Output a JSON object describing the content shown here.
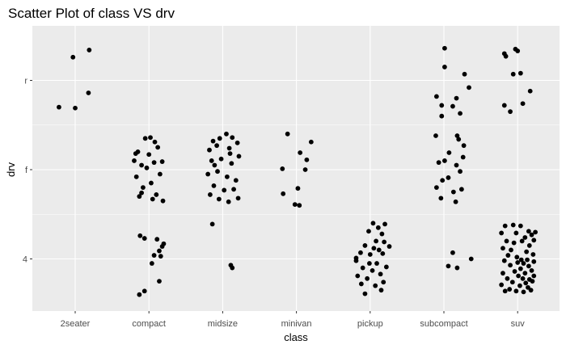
{
  "chart_data": {
    "type": "scatter",
    "title": "Scatter Plot of class VS drv",
    "xlabel": "class",
    "ylabel": "drv",
    "x_categories": [
      "2seater",
      "compact",
      "midsize",
      "minivan",
      "pickup",
      "subcompact",
      "suv"
    ],
    "y_categories": [
      "4",
      "f",
      "r"
    ],
    "jitter": true,
    "grid": true,
    "background": "#ebebeb",
    "grid_color": "#ffffff",
    "point_color": "#000000",
    "points": [
      {
        "x": "2seater",
        "y": "r",
        "dx": -0.22,
        "dy": -0.3
      },
      {
        "x": "2seater",
        "y": "r",
        "dx": -0.03,
        "dy": 0.26
      },
      {
        "x": "2seater",
        "y": "r",
        "dx": 0.0,
        "dy": -0.31
      },
      {
        "x": "2seater",
        "y": "r",
        "dx": 0.19,
        "dy": 0.34
      },
      {
        "x": "2seater",
        "y": "r",
        "dx": 0.18,
        "dy": -0.14
      },
      {
        "x": "compact",
        "y": "f",
        "dx": -0.15,
        "dy": 0.2
      },
      {
        "x": "compact",
        "y": "f",
        "dx": -0.05,
        "dy": 0.35
      },
      {
        "x": "compact",
        "y": "f",
        "dx": 0.02,
        "dy": 0.36
      },
      {
        "x": "compact",
        "y": "f",
        "dx": 0.08,
        "dy": 0.31
      },
      {
        "x": "compact",
        "y": "f",
        "dx": -0.2,
        "dy": 0.1
      },
      {
        "x": "compact",
        "y": "f",
        "dx": -0.1,
        "dy": 0.05
      },
      {
        "x": "compact",
        "y": "f",
        "dx": 0.0,
        "dy": 0.17
      },
      {
        "x": "compact",
        "y": "f",
        "dx": 0.12,
        "dy": 0.25
      },
      {
        "x": "compact",
        "y": "f",
        "dx": 0.18,
        "dy": 0.09
      },
      {
        "x": "compact",
        "y": "f",
        "dx": -0.17,
        "dy": -0.08
      },
      {
        "x": "compact",
        "y": "f",
        "dx": -0.08,
        "dy": -0.2
      },
      {
        "x": "compact",
        "y": "f",
        "dx": 0.03,
        "dy": -0.15
      },
      {
        "x": "compact",
        "y": "f",
        "dx": 0.1,
        "dy": -0.28
      },
      {
        "x": "compact",
        "y": "f",
        "dx": 0.19,
        "dy": -0.35
      },
      {
        "x": "compact",
        "y": "f",
        "dx": -0.13,
        "dy": -0.3
      },
      {
        "x": "compact",
        "y": "f",
        "dx": 0.05,
        "dy": -0.33
      },
      {
        "x": "compact",
        "y": "f",
        "dx": -0.03,
        "dy": 0.02
      },
      {
        "x": "compact",
        "y": "f",
        "dx": 0.15,
        "dy": -0.05
      },
      {
        "x": "compact",
        "y": "f",
        "dx": -0.18,
        "dy": 0.18
      },
      {
        "x": "compact",
        "y": "f",
        "dx": 0.07,
        "dy": 0.08
      },
      {
        "x": "compact",
        "y": "f",
        "dx": -0.1,
        "dy": -0.26
      },
      {
        "x": "compact",
        "y": "4",
        "dx": -0.12,
        "dy": 0.26
      },
      {
        "x": "compact",
        "y": "4",
        "dx": -0.06,
        "dy": 0.23
      },
      {
        "x": "compact",
        "y": "4",
        "dx": 0.11,
        "dy": 0.22
      },
      {
        "x": "compact",
        "y": "4",
        "dx": 0.2,
        "dy": 0.17
      },
      {
        "x": "compact",
        "y": "4",
        "dx": 0.18,
        "dy": 0.14
      },
      {
        "x": "compact",
        "y": "4",
        "dx": 0.14,
        "dy": 0.09
      },
      {
        "x": "compact",
        "y": "4",
        "dx": 0.07,
        "dy": 0.04
      },
      {
        "x": "compact",
        "y": "4",
        "dx": 0.16,
        "dy": 0.03
      },
      {
        "x": "compact",
        "y": "4",
        "dx": 0.04,
        "dy": -0.05
      },
      {
        "x": "compact",
        "y": "4",
        "dx": 0.14,
        "dy": -0.25
      },
      {
        "x": "compact",
        "y": "4",
        "dx": -0.06,
        "dy": -0.36
      },
      {
        "x": "compact",
        "y": "4",
        "dx": -0.13,
        "dy": -0.4
      },
      {
        "x": "midsize",
        "y": "f",
        "dx": -0.13,
        "dy": 0.32
      },
      {
        "x": "midsize",
        "y": "f",
        "dx": -0.04,
        "dy": 0.35
      },
      {
        "x": "midsize",
        "y": "f",
        "dx": 0.05,
        "dy": 0.4
      },
      {
        "x": "midsize",
        "y": "f",
        "dx": 0.13,
        "dy": 0.36
      },
      {
        "x": "midsize",
        "y": "f",
        "dx": 0.2,
        "dy": 0.3
      },
      {
        "x": "midsize",
        "y": "f",
        "dx": -0.18,
        "dy": 0.22
      },
      {
        "x": "midsize",
        "y": "f",
        "dx": -0.08,
        "dy": 0.27
      },
      {
        "x": "midsize",
        "y": "f",
        "dx": 0.09,
        "dy": 0.24
      },
      {
        "x": "midsize",
        "y": "f",
        "dx": 0.22,
        "dy": 0.15
      },
      {
        "x": "midsize",
        "y": "f",
        "dx": -0.15,
        "dy": 0.1
      },
      {
        "x": "midsize",
        "y": "f",
        "dx": -0.02,
        "dy": 0.12
      },
      {
        "x": "midsize",
        "y": "f",
        "dx": 0.12,
        "dy": 0.07
      },
      {
        "x": "midsize",
        "y": "f",
        "dx": -0.2,
        "dy": -0.05
      },
      {
        "x": "midsize",
        "y": "f",
        "dx": -0.07,
        "dy": -0.02
      },
      {
        "x": "midsize",
        "y": "f",
        "dx": 0.06,
        "dy": -0.08
      },
      {
        "x": "midsize",
        "y": "f",
        "dx": 0.18,
        "dy": -0.12
      },
      {
        "x": "midsize",
        "y": "f",
        "dx": -0.12,
        "dy": -0.18
      },
      {
        "x": "midsize",
        "y": "f",
        "dx": 0.02,
        "dy": -0.23
      },
      {
        "x": "midsize",
        "y": "f",
        "dx": 0.15,
        "dy": -0.22
      },
      {
        "x": "midsize",
        "y": "f",
        "dx": -0.17,
        "dy": -0.28
      },
      {
        "x": "midsize",
        "y": "f",
        "dx": -0.05,
        "dy": -0.33
      },
      {
        "x": "midsize",
        "y": "f",
        "dx": 0.08,
        "dy": -0.36
      },
      {
        "x": "midsize",
        "y": "f",
        "dx": 0.21,
        "dy": -0.32
      },
      {
        "x": "midsize",
        "y": "f",
        "dx": -0.11,
        "dy": 0.05
      },
      {
        "x": "midsize",
        "y": "f",
        "dx": 0.1,
        "dy": 0.18
      },
      {
        "x": "midsize",
        "y": "f",
        "dx": -0.14,
        "dy": -0.61
      },
      {
        "x": "midsize",
        "y": "4",
        "dx": 0.11,
        "dy": -0.07
      },
      {
        "x": "midsize",
        "y": "4",
        "dx": 0.13,
        "dy": -0.1
      },
      {
        "x": "minivan",
        "y": "f",
        "dx": -0.12,
        "dy": 0.4
      },
      {
        "x": "minivan",
        "y": "f",
        "dx": 0.2,
        "dy": 0.31
      },
      {
        "x": "minivan",
        "y": "f",
        "dx": 0.05,
        "dy": 0.19
      },
      {
        "x": "minivan",
        "y": "f",
        "dx": 0.14,
        "dy": 0.11
      },
      {
        "x": "minivan",
        "y": "f",
        "dx": 0.12,
        "dy": 0.0
      },
      {
        "x": "minivan",
        "y": "f",
        "dx": -0.19,
        "dy": 0.01
      },
      {
        "x": "minivan",
        "y": "f",
        "dx": 0.02,
        "dy": -0.21
      },
      {
        "x": "minivan",
        "y": "f",
        "dx": -0.18,
        "dy": -0.27
      },
      {
        "x": "minivan",
        "y": "f",
        "dx": -0.02,
        "dy": -0.39
      },
      {
        "x": "minivan",
        "y": "f",
        "dx": 0.04,
        "dy": -0.4
      },
      {
        "x": "pickup",
        "y": "4",
        "dx": 0.04,
        "dy": 0.4
      },
      {
        "x": "pickup",
        "y": "4",
        "dx": 0.2,
        "dy": 0.39
      },
      {
        "x": "pickup",
        "y": "4",
        "dx": 0.11,
        "dy": 0.35
      },
      {
        "x": "pickup",
        "y": "4",
        "dx": -0.02,
        "dy": 0.31
      },
      {
        "x": "pickup",
        "y": "4",
        "dx": 0.16,
        "dy": 0.28
      },
      {
        "x": "pickup",
        "y": "4",
        "dx": 0.08,
        "dy": 0.2
      },
      {
        "x": "pickup",
        "y": "4",
        "dx": 0.19,
        "dy": 0.19
      },
      {
        "x": "pickup",
        "y": "4",
        "dx": -0.07,
        "dy": 0.15
      },
      {
        "x": "pickup",
        "y": "4",
        "dx": 0.05,
        "dy": 0.12
      },
      {
        "x": "pickup",
        "y": "4",
        "dx": 0.26,
        "dy": 0.14
      },
      {
        "x": "pickup",
        "y": "4",
        "dx": -0.13,
        "dy": 0.07
      },
      {
        "x": "pickup",
        "y": "4",
        "dx": 0.0,
        "dy": 0.05
      },
      {
        "x": "pickup",
        "y": "4",
        "dx": 0.17,
        "dy": 0.06
      },
      {
        "x": "pickup",
        "y": "4",
        "dx": -0.19,
        "dy": -0.02
      },
      {
        "x": "pickup",
        "y": "4",
        "dx": 0.09,
        "dy": -0.05
      },
      {
        "x": "pickup",
        "y": "4",
        "dx": 0.22,
        "dy": -0.09
      },
      {
        "x": "pickup",
        "y": "4",
        "dx": -0.1,
        "dy": -0.1
      },
      {
        "x": "pickup",
        "y": "4",
        "dx": 0.03,
        "dy": -0.13
      },
      {
        "x": "pickup",
        "y": "4",
        "dx": 0.14,
        "dy": -0.17
      },
      {
        "x": "pickup",
        "y": "4",
        "dx": -0.17,
        "dy": -0.19
      },
      {
        "x": "pickup",
        "y": "4",
        "dx": -0.04,
        "dy": -0.22
      },
      {
        "x": "pickup",
        "y": "4",
        "dx": 0.18,
        "dy": -0.26
      },
      {
        "x": "pickup",
        "y": "4",
        "dx": -0.12,
        "dy": -0.28
      },
      {
        "x": "pickup",
        "y": "4",
        "dx": 0.07,
        "dy": -0.3
      },
      {
        "x": "pickup",
        "y": "4",
        "dx": 0.15,
        "dy": -0.35
      },
      {
        "x": "pickup",
        "y": "4",
        "dx": -0.07,
        "dy": -0.39
      },
      {
        "x": "pickup",
        "y": "4",
        "dx": -0.19,
        "dy": 0.01
      },
      {
        "x": "pickup",
        "y": "4",
        "dx": 0.12,
        "dy": 0.1
      },
      {
        "x": "pickup",
        "y": "4",
        "dx": -0.01,
        "dy": -0.05
      },
      {
        "x": "subcompact",
        "y": "r",
        "dx": 0.01,
        "dy": 0.36
      },
      {
        "x": "subcompact",
        "y": "r",
        "dx": 0.01,
        "dy": 0.15
      },
      {
        "x": "subcompact",
        "y": "r",
        "dx": 0.28,
        "dy": 0.07
      },
      {
        "x": "subcompact",
        "y": "r",
        "dx": 0.34,
        "dy": -0.08
      },
      {
        "x": "subcompact",
        "y": "r",
        "dx": -0.1,
        "dy": -0.18
      },
      {
        "x": "subcompact",
        "y": "r",
        "dx": 0.17,
        "dy": -0.2
      },
      {
        "x": "subcompact",
        "y": "r",
        "dx": -0.03,
        "dy": -0.28
      },
      {
        "x": "subcompact",
        "y": "r",
        "dx": 0.12,
        "dy": -0.29
      },
      {
        "x": "subcompact",
        "y": "r",
        "dx": 0.22,
        "dy": -0.37
      },
      {
        "x": "subcompact",
        "y": "r",
        "dx": -0.03,
        "dy": -0.4
      },
      {
        "x": "subcompact",
        "y": "f",
        "dx": -0.11,
        "dy": 0.38
      },
      {
        "x": "subcompact",
        "y": "f",
        "dx": 0.18,
        "dy": 0.38
      },
      {
        "x": "subcompact",
        "y": "f",
        "dx": 0.2,
        "dy": 0.34
      },
      {
        "x": "subcompact",
        "y": "f",
        "dx": 0.27,
        "dy": 0.27
      },
      {
        "x": "subcompact",
        "y": "f",
        "dx": 0.07,
        "dy": 0.19
      },
      {
        "x": "subcompact",
        "y": "f",
        "dx": 0.26,
        "dy": 0.14
      },
      {
        "x": "subcompact",
        "y": "f",
        "dx": -0.07,
        "dy": 0.08
      },
      {
        "x": "subcompact",
        "y": "f",
        "dx": 0.17,
        "dy": 0.05
      },
      {
        "x": "subcompact",
        "y": "f",
        "dx": 0.22,
        "dy": -0.02
      },
      {
        "x": "subcompact",
        "y": "f",
        "dx": -0.02,
        "dy": -0.12
      },
      {
        "x": "subcompact",
        "y": "f",
        "dx": 0.06,
        "dy": -0.09
      },
      {
        "x": "subcompact",
        "y": "f",
        "dx": 0.24,
        "dy": -0.22
      },
      {
        "x": "subcompact",
        "y": "f",
        "dx": -0.1,
        "dy": -0.2
      },
      {
        "x": "subcompact",
        "y": "f",
        "dx": 0.13,
        "dy": -0.25
      },
      {
        "x": "subcompact",
        "y": "f",
        "dx": -0.04,
        "dy": -0.32
      },
      {
        "x": "subcompact",
        "y": "f",
        "dx": 0.16,
        "dy": -0.36
      },
      {
        "x": "subcompact",
        "y": "f",
        "dx": 0.01,
        "dy": 0.1
      },
      {
        "x": "subcompact",
        "y": "4",
        "dx": 0.12,
        "dy": 0.07
      },
      {
        "x": "subcompact",
        "y": "4",
        "dx": 0.37,
        "dy": 0.0
      },
      {
        "x": "subcompact",
        "y": "4",
        "dx": 0.06,
        "dy": -0.08
      },
      {
        "x": "subcompact",
        "y": "4",
        "dx": 0.18,
        "dy": -0.1
      },
      {
        "x": "suv",
        "y": "r",
        "dx": -0.18,
        "dy": 0.3
      },
      {
        "x": "suv",
        "y": "r",
        "dx": -0.16,
        "dy": 0.27
      },
      {
        "x": "suv",
        "y": "r",
        "dx": -0.03,
        "dy": 0.35
      },
      {
        "x": "suv",
        "y": "r",
        "dx": 0.0,
        "dy": 0.33
      },
      {
        "x": "suv",
        "y": "r",
        "dx": 0.04,
        "dy": 0.08
      },
      {
        "x": "suv",
        "y": "r",
        "dx": -0.06,
        "dy": 0.07
      },
      {
        "x": "suv",
        "y": "r",
        "dx": 0.17,
        "dy": -0.12
      },
      {
        "x": "suv",
        "y": "r",
        "dx": 0.07,
        "dy": -0.26
      },
      {
        "x": "suv",
        "y": "r",
        "dx": -0.18,
        "dy": -0.28
      },
      {
        "x": "suv",
        "y": "r",
        "dx": -0.1,
        "dy": -0.35
      },
      {
        "x": "suv",
        "y": "4",
        "dx": -0.17,
        "dy": 0.37
      },
      {
        "x": "suv",
        "y": "4",
        "dx": -0.06,
        "dy": 0.38
      },
      {
        "x": "suv",
        "y": "4",
        "dx": 0.04,
        "dy": 0.37
      },
      {
        "x": "suv",
        "y": "4",
        "dx": 0.15,
        "dy": 0.31
      },
      {
        "x": "suv",
        "y": "4",
        "dx": 0.24,
        "dy": 0.3
      },
      {
        "x": "suv",
        "y": "4",
        "dx": -0.22,
        "dy": 0.29
      },
      {
        "x": "suv",
        "y": "4",
        "dx": -0.02,
        "dy": 0.29
      },
      {
        "x": "suv",
        "y": "4",
        "dx": 0.19,
        "dy": 0.27
      },
      {
        "x": "suv",
        "y": "4",
        "dx": 0.1,
        "dy": 0.24
      },
      {
        "x": "suv",
        "y": "4",
        "dx": 0.22,
        "dy": 0.21
      },
      {
        "x": "suv",
        "y": "4",
        "dx": -0.15,
        "dy": 0.2
      },
      {
        "x": "suv",
        "y": "4",
        "dx": 0.06,
        "dy": 0.2
      },
      {
        "x": "suv",
        "y": "4",
        "dx": -0.05,
        "dy": 0.18
      },
      {
        "x": "suv",
        "y": "4",
        "dx": 0.16,
        "dy": 0.15
      },
      {
        "x": "suv",
        "y": "4",
        "dx": -0.2,
        "dy": 0.12
      },
      {
        "x": "suv",
        "y": "4",
        "dx": -0.09,
        "dy": 0.1
      },
      {
        "x": "suv",
        "y": "4",
        "dx": 0.12,
        "dy": 0.08
      },
      {
        "x": "suv",
        "y": "4",
        "dx": 0.21,
        "dy": 0.05
      },
      {
        "x": "suv",
        "y": "4",
        "dx": -0.13,
        "dy": 0.04
      },
      {
        "x": "suv",
        "y": "4",
        "dx": -0.01,
        "dy": 0.02
      },
      {
        "x": "suv",
        "y": "4",
        "dx": 0.05,
        "dy": -0.01
      },
      {
        "x": "suv",
        "y": "4",
        "dx": 0.13,
        "dy": -0.01
      },
      {
        "x": "suv",
        "y": "4",
        "dx": -0.18,
        "dy": -0.02
      },
      {
        "x": "suv",
        "y": "4",
        "dx": 0.0,
        "dy": -0.04
      },
      {
        "x": "suv",
        "y": "4",
        "dx": 0.08,
        "dy": -0.05
      },
      {
        "x": "suv",
        "y": "4",
        "dx": 0.22,
        "dy": -0.03
      },
      {
        "x": "suv",
        "y": "4",
        "dx": -0.1,
        "dy": -0.07
      },
      {
        "x": "suv",
        "y": "4",
        "dx": 0.15,
        "dy": -0.08
      },
      {
        "x": "suv",
        "y": "4",
        "dx": 0.04,
        "dy": -0.11
      },
      {
        "x": "suv",
        "y": "4",
        "dx": -0.04,
        "dy": -0.14
      },
      {
        "x": "suv",
        "y": "4",
        "dx": 0.19,
        "dy": -0.13
      },
      {
        "x": "suv",
        "y": "4",
        "dx": 0.1,
        "dy": -0.16
      },
      {
        "x": "suv",
        "y": "4",
        "dx": -0.2,
        "dy": -0.16
      },
      {
        "x": "suv",
        "y": "4",
        "dx": 0.01,
        "dy": -0.19
      },
      {
        "x": "suv",
        "y": "4",
        "dx": 0.22,
        "dy": -0.19
      },
      {
        "x": "suv",
        "y": "4",
        "dx": -0.14,
        "dy": -0.22
      },
      {
        "x": "suv",
        "y": "4",
        "dx": 0.07,
        "dy": -0.22
      },
      {
        "x": "suv",
        "y": "4",
        "dx": 0.16,
        "dy": -0.23
      },
      {
        "x": "suv",
        "y": "4",
        "dx": -0.07,
        "dy": -0.26
      },
      {
        "x": "suv",
        "y": "4",
        "dx": 0.11,
        "dy": -0.27
      },
      {
        "x": "suv",
        "y": "4",
        "dx": 0.2,
        "dy": -0.25
      },
      {
        "x": "suv",
        "y": "4",
        "dx": -0.22,
        "dy": -0.29
      },
      {
        "x": "suv",
        "y": "4",
        "dx": 0.03,
        "dy": -0.3
      },
      {
        "x": "suv",
        "y": "4",
        "dx": 0.14,
        "dy": -0.32
      },
      {
        "x": "suv",
        "y": "4",
        "dx": -0.11,
        "dy": -0.34
      },
      {
        "x": "suv",
        "y": "4",
        "dx": -0.02,
        "dy": -0.36
      },
      {
        "x": "suv",
        "y": "4",
        "dx": 0.08,
        "dy": -0.37
      },
      {
        "x": "suv",
        "y": "4",
        "dx": -0.17,
        "dy": -0.36
      },
      {
        "x": "suv",
        "y": "4",
        "dx": 0.18,
        "dy": -0.35
      }
    ]
  }
}
